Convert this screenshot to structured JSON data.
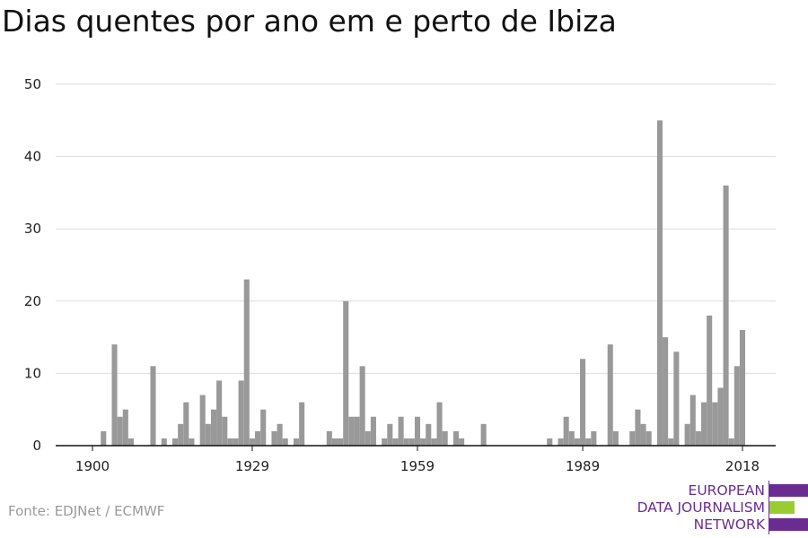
{
  "title": "Dias quentes por ano em e perto de Ibiza",
  "source": "Fonte: EDJNet / ECMWF",
  "logo": {
    "lines": [
      "EUROPEAN",
      "DATA JOURNALISM",
      "NETWORK"
    ],
    "colors": {
      "purple": "#6a2c91",
      "green": "#99cc33"
    }
  },
  "chart_data": {
    "type": "bar",
    "title": "Dias quentes por ano em e perto de Ibiza",
    "xlabel": "",
    "ylabel": "",
    "x_ticks": [
      1900,
      1929,
      1959,
      1989,
      2018
    ],
    "y_ticks": [
      0,
      10,
      20,
      30,
      40,
      50
    ],
    "xlim": [
      1895,
      2020
    ],
    "ylim": [
      0,
      50
    ],
    "grid": true,
    "bar_color": "#999999",
    "series": [
      {
        "x": [
          1900,
          1901,
          1902,
          1903,
          1904,
          1905,
          1906,
          1907,
          1908,
          1909,
          1910,
          1911,
          1912,
          1913,
          1914,
          1915,
          1916,
          1917,
          1918,
          1919,
          1920,
          1921,
          1922,
          1923,
          1924,
          1925,
          1926,
          1927,
          1928,
          1929,
          1930,
          1931,
          1932,
          1933,
          1934,
          1935,
          1936,
          1937,
          1938,
          1939,
          1940,
          1941,
          1942,
          1943,
          1944,
          1945,
          1946,
          1947,
          1948,
          1949,
          1950,
          1951,
          1952,
          1953,
          1954,
          1955,
          1956,
          1957,
          1958,
          1959,
          1960,
          1961,
          1962,
          1963,
          1964,
          1965,
          1966,
          1967,
          1968,
          1969,
          1970,
          1971,
          1972,
          1973,
          1974,
          1975,
          1976,
          1977,
          1978,
          1979,
          1980,
          1981,
          1982,
          1983,
          1984,
          1985,
          1986,
          1987,
          1988,
          1989,
          1990,
          1991,
          1992,
          1993,
          1994,
          1995,
          1996,
          1997,
          1998,
          1999,
          2000,
          2001,
          2002,
          2003,
          2004,
          2005,
          2006,
          2007,
          2008,
          2009,
          2010,
          2011,
          2012,
          2013,
          2014,
          2015,
          2016,
          2017,
          2018
        ],
        "values": [
          0,
          0,
          2,
          0,
          14,
          4,
          5,
          1,
          0,
          0,
          0,
          11,
          0,
          1,
          0,
          1,
          3,
          6,
          1,
          0,
          7,
          3,
          5,
          9,
          4,
          1,
          1,
          9,
          23,
          1,
          2,
          5,
          0,
          2,
          3,
          1,
          0,
          1,
          6,
          0,
          0,
          0,
          0,
          2,
          1,
          1,
          20,
          4,
          4,
          11,
          2,
          4,
          0,
          1,
          3,
          1,
          4,
          1,
          1,
          4,
          1,
          3,
          1,
          6,
          2,
          0,
          2,
          1,
          0,
          0,
          0,
          3,
          0,
          0,
          0,
          0,
          0,
          0,
          0,
          0,
          0,
          0,
          0,
          1,
          0,
          1,
          4,
          2,
          1,
          12,
          1,
          2,
          0,
          0,
          14,
          2,
          0,
          0,
          2,
          5,
          3,
          2,
          0,
          45,
          15,
          1,
          13,
          0,
          3,
          7,
          2,
          6,
          18,
          6,
          8,
          36,
          1,
          11,
          16
        ]
      }
    ]
  }
}
